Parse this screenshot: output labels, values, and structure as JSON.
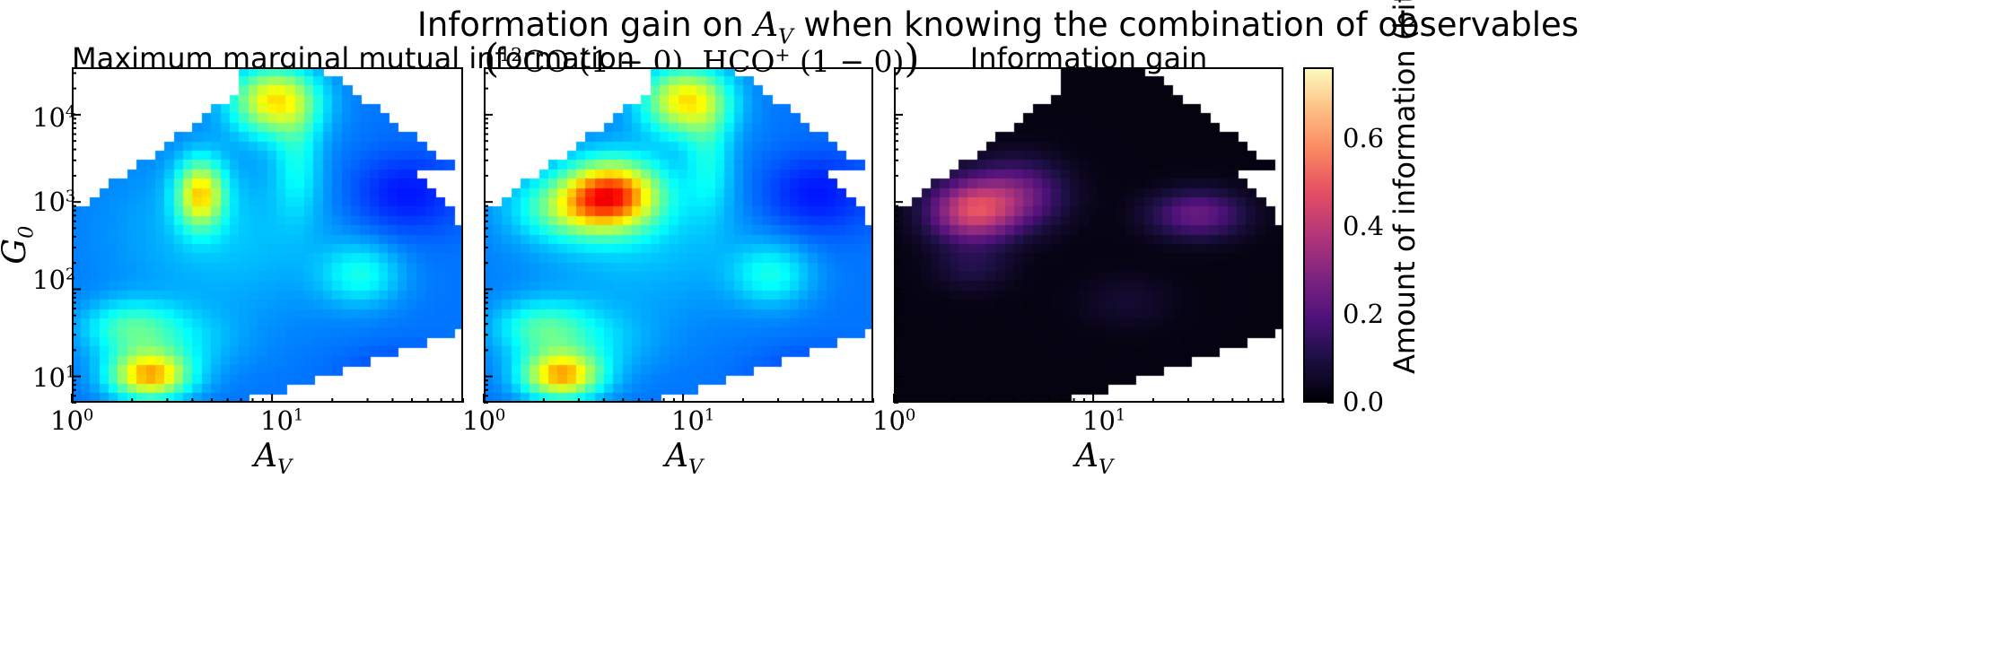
{
  "figure": {
    "suptitle_text": "Information gain on ",
    "suptitle_var": "A",
    "suptitle_var_sub": "V",
    "suptitle_tail": " when knowing the combination of observables"
  },
  "panels": [
    {
      "title": "Maximum marginal mutual information"
    },
    {
      "title_parts": {
        "open": "(",
        "sup1": "12",
        "co": "CO (1 − 0), HCO",
        "sup2": "+",
        "tail": " (1 − 0)",
        "close": ")"
      }
    },
    {
      "title": "Information gain"
    }
  ],
  "axes": {
    "xlabel": "A",
    "xlabel_sub": "V",
    "ylabel": "G",
    "ylabel_sub": "0",
    "x_ticks": [
      {
        "base": "10",
        "exp": "0"
      },
      {
        "base": "10",
        "exp": "1"
      }
    ],
    "y_ticks": [
      {
        "base": "10",
        "exp": "1"
      },
      {
        "base": "10",
        "exp": "2"
      },
      {
        "base": "10",
        "exp": "3"
      },
      {
        "base": "10",
        "exp": "4"
      }
    ]
  },
  "colorbar": {
    "label": "Amount of information (bits)",
    "ticks": [
      "0.0",
      "0.2",
      "0.4",
      "0.6"
    ]
  },
  "chart_data": {
    "type": "heatmap",
    "x_scale": "log",
    "y_scale": "log",
    "xlim": [
      1,
      90
    ],
    "ylim": [
      5,
      35000
    ],
    "panel_colormaps": [
      "jet",
      "jet",
      "magma"
    ],
    "colorbar_range": [
      0.0,
      0.76
    ],
    "grid": false,
    "colorbar_position": "right"
  }
}
